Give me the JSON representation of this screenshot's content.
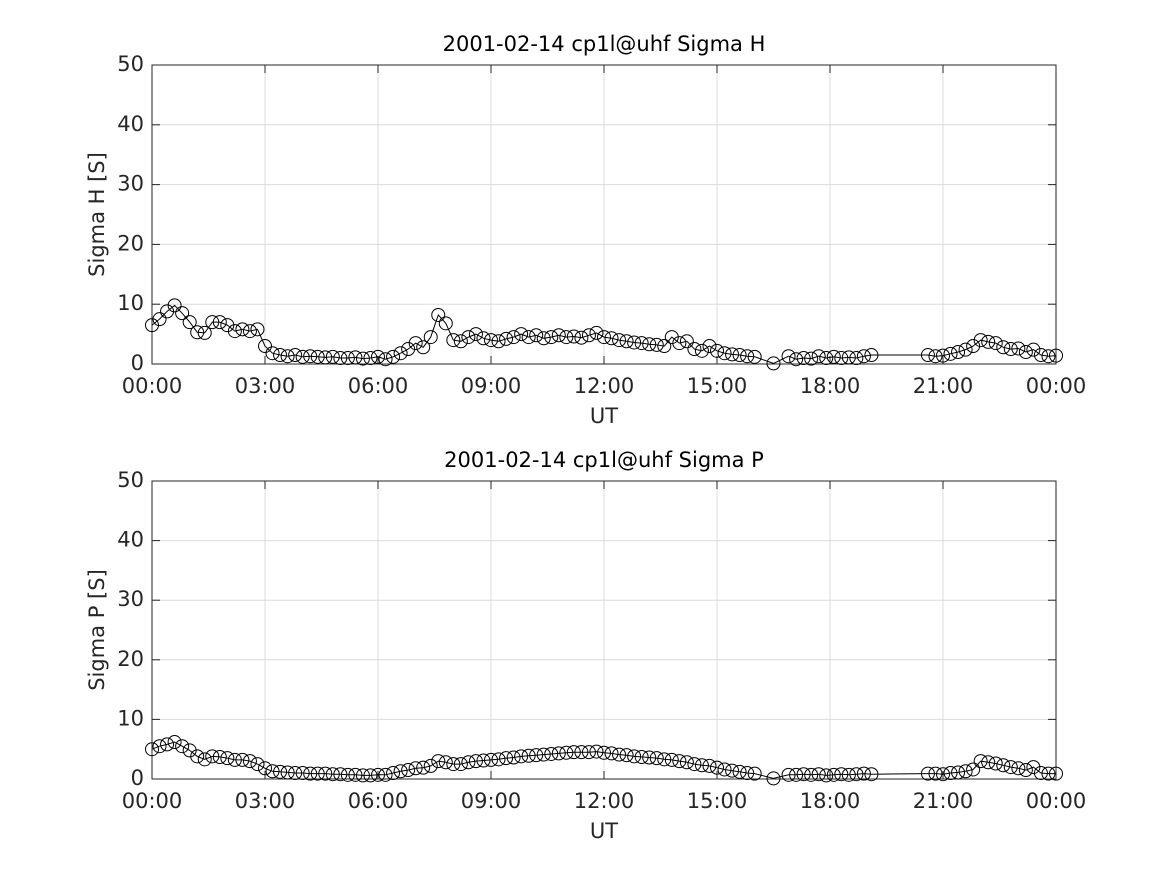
{
  "chart_data": [
    {
      "type": "line",
      "title": "2001-02-14  cp1l@uhf Sigma H",
      "xlabel": "UT",
      "ylabel": "Sigma H [S]",
      "color": "#000000",
      "grid": true,
      "xlim": [
        0,
        24
      ],
      "ylim": [
        0,
        50
      ],
      "xticks": [
        {
          "value": 0,
          "label": "00:00"
        },
        {
          "value": 3,
          "label": "03:00"
        },
        {
          "value": 6,
          "label": "06:00"
        },
        {
          "value": 9,
          "label": "09:00"
        },
        {
          "value": 12,
          "label": "12:00"
        },
        {
          "value": 15,
          "label": "15:00"
        },
        {
          "value": 18,
          "label": "18:00"
        },
        {
          "value": 21,
          "label": "21:00"
        },
        {
          "value": 24,
          "label": "00:00"
        }
      ],
      "yticks": [
        0,
        10,
        20,
        30,
        40,
        50
      ],
      "x": [
        0,
        0.2,
        0.4,
        0.6,
        0.8,
        1,
        1.2,
        1.4,
        1.6,
        1.8,
        2,
        2.2,
        2.4,
        2.6,
        2.8,
        3,
        3.2,
        3.4,
        3.6,
        3.8,
        4,
        4.2,
        4.4,
        4.6,
        4.8,
        5,
        5.2,
        5.4,
        5.6,
        5.8,
        6,
        6.2,
        6.4,
        6.6,
        6.8,
        7,
        7.2,
        7.4,
        7.6,
        7.8,
        8,
        8.2,
        8.4,
        8.6,
        8.8,
        9,
        9.2,
        9.4,
        9.6,
        9.8,
        10,
        10.2,
        10.4,
        10.6,
        10.8,
        11,
        11.2,
        11.4,
        11.6,
        11.8,
        12,
        12.2,
        12.4,
        12.6,
        12.8,
        13,
        13.2,
        13.4,
        13.6,
        13.8,
        14,
        14.2,
        14.4,
        14.6,
        14.8,
        15,
        15.2,
        15.4,
        15.6,
        15.8,
        16,
        16.5,
        16.9,
        17.1,
        17.3,
        17.5,
        17.7,
        17.9,
        18.1,
        18.3,
        18.5,
        18.7,
        18.9,
        19.1,
        20.6,
        20.8,
        21,
        21.2,
        21.4,
        21.6,
        21.8,
        22,
        22.2,
        22.4,
        22.6,
        22.8,
        23,
        23.2,
        23.4,
        23.6,
        23.8,
        24
      ],
      "values": [
        6.5,
        7.5,
        8.8,
        9.8,
        8.5,
        7,
        5.3,
        5.2,
        7,
        7,
        6.5,
        5.5,
        5.8,
        5.5,
        5.8,
        3,
        1.8,
        1.5,
        1.3,
        1.5,
        1.2,
        1.3,
        1.2,
        1.1,
        1.2,
        1,
        1,
        1.1,
        0.9,
        1,
        1.2,
        0.8,
        1.2,
        1.8,
        2.5,
        3.5,
        2.8,
        4.5,
        8.2,
        6.8,
        4,
        3.8,
        4.5,
        5,
        4.3,
        4,
        3.8,
        4.2,
        4.5,
        5,
        4.5,
        4.8,
        4.3,
        4.5,
        4.8,
        4.5,
        4.6,
        4.4,
        4.8,
        5.2,
        4.5,
        4.3,
        4,
        3.8,
        3.6,
        3.5,
        3.3,
        3.2,
        3,
        4.5,
        3.5,
        3.8,
        2.5,
        2.2,
        3,
        2.2,
        1.8,
        1.6,
        1.5,
        1.3,
        1.2,
        0.1,
        1.3,
        0.8,
        1,
        0.9,
        1.3,
        1,
        1.2,
        1,
        1.1,
        1,
        1.3,
        1.5,
        1.5,
        1.3,
        1.4,
        1.7,
        2,
        2.4,
        3,
        4,
        3.7,
        3.5,
        2.8,
        2.5,
        2.6,
        2,
        2.4,
        1.5,
        1.3,
        1.4
      ]
    },
    {
      "type": "line",
      "title": "2001-02-14  cp1l@uhf Sigma P",
      "xlabel": "UT",
      "ylabel": "Sigma P [S]",
      "color": "#000000",
      "grid": true,
      "xlim": [
        0,
        24
      ],
      "ylim": [
        0,
        50
      ],
      "xticks": [
        {
          "value": 0,
          "label": "00:00"
        },
        {
          "value": 3,
          "label": "03:00"
        },
        {
          "value": 6,
          "label": "06:00"
        },
        {
          "value": 9,
          "label": "09:00"
        },
        {
          "value": 12,
          "label": "12:00"
        },
        {
          "value": 15,
          "label": "15:00"
        },
        {
          "value": 18,
          "label": "18:00"
        },
        {
          "value": 21,
          "label": "21:00"
        },
        {
          "value": 24,
          "label": "00:00"
        }
      ],
      "yticks": [
        0,
        10,
        20,
        30,
        40,
        50
      ],
      "x": [
        0,
        0.2,
        0.4,
        0.6,
        0.8,
        1,
        1.2,
        1.4,
        1.6,
        1.8,
        2,
        2.2,
        2.4,
        2.6,
        2.8,
        3,
        3.2,
        3.4,
        3.6,
        3.8,
        4,
        4.2,
        4.4,
        4.6,
        4.8,
        5,
        5.2,
        5.4,
        5.6,
        5.8,
        6,
        6.2,
        6.4,
        6.6,
        6.8,
        7,
        7.2,
        7.4,
        7.6,
        7.8,
        8,
        8.2,
        8.4,
        8.6,
        8.8,
        9,
        9.2,
        9.4,
        9.6,
        9.8,
        10,
        10.2,
        10.4,
        10.6,
        10.8,
        11,
        11.2,
        11.4,
        11.6,
        11.8,
        12,
        12.2,
        12.4,
        12.6,
        12.8,
        13,
        13.2,
        13.4,
        13.6,
        13.8,
        14,
        14.2,
        14.4,
        14.6,
        14.8,
        15,
        15.2,
        15.4,
        15.6,
        15.8,
        16,
        16.5,
        16.9,
        17.1,
        17.3,
        17.5,
        17.7,
        17.9,
        18.1,
        18.3,
        18.5,
        18.7,
        18.9,
        19.1,
        20.6,
        20.8,
        21,
        21.2,
        21.4,
        21.6,
        21.8,
        22,
        22.2,
        22.4,
        22.6,
        22.8,
        23,
        23.2,
        23.4,
        23.6,
        23.8,
        24
      ],
      "values": [
        5,
        5.5,
        5.8,
        6.2,
        5.5,
        4.8,
        3.8,
        3.3,
        3.8,
        3.7,
        3.5,
        3.2,
        3.2,
        3,
        2.5,
        1.8,
        1.3,
        1.2,
        1.1,
        1,
        1,
        0.9,
        0.9,
        0.9,
        0.8,
        0.8,
        0.7,
        0.7,
        0.6,
        0.6,
        0.7,
        0.7,
        1,
        1.3,
        1.5,
        1.8,
        1.9,
        2.2,
        3,
        2.8,
        2.5,
        2.5,
        2.8,
        3,
        3.1,
        3.2,
        3.3,
        3.5,
        3.6,
        3.8,
        3.9,
        4,
        4.1,
        4.2,
        4.3,
        4.4,
        4.5,
        4.5,
        4.5,
        4.6,
        4.4,
        4.3,
        4.1,
        4,
        3.8,
        3.7,
        3.6,
        3.5,
        3.3,
        3.2,
        3,
        2.8,
        2.5,
        2.3,
        2.2,
        1.9,
        1.6,
        1.4,
        1.2,
        1,
        0.9,
        0.1,
        0.7,
        0.7,
        0.8,
        0.7,
        0.8,
        0.6,
        0.7,
        0.8,
        0.7,
        0.8,
        0.9,
        0.8,
        0.9,
        0.9,
        0.8,
        1,
        1.1,
        1.3,
        1.6,
        3,
        2.8,
        2.6,
        2.3,
        2,
        1.8,
        1.5,
        2,
        1,
        0.9,
        0.9
      ]
    }
  ]
}
